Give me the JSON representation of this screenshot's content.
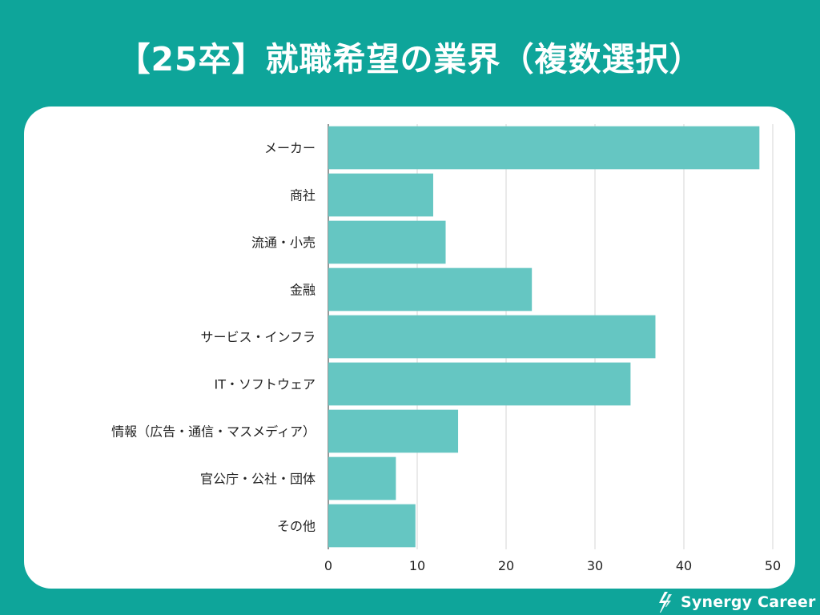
{
  "chart_data": {
    "type": "bar",
    "orientation": "horizontal",
    "title": "【25卒】就職希望の業界（複数選択）",
    "categories": [
      "メーカー",
      "商社",
      "流通・小売",
      "金融",
      "サービス・インフラ",
      "IT・ソフトウェア",
      "情報（広告・通信・マスメディア）",
      "官公庁・公社・団体",
      "その他"
    ],
    "values": [
      48.5,
      11.8,
      13.2,
      22.9,
      36.8,
      34.0,
      14.6,
      7.6,
      9.8
    ],
    "xlim": [
      0,
      50
    ],
    "xticks": [
      0,
      10,
      20,
      30,
      40,
      50
    ],
    "xlabel": "",
    "ylabel": "",
    "grid": "vertical",
    "bar_color": "#65c6c2"
  },
  "brand": {
    "name": "Synergy Career",
    "color": "#ffffff"
  }
}
